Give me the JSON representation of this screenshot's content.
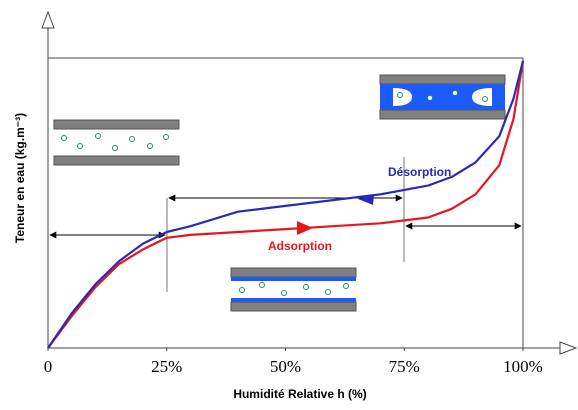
{
  "chart_data": {
    "type": "line",
    "x_label": "Humidité Relative h (%)",
    "y_label": "Teneur en eau (kg.m⁻³)",
    "x": [
      0,
      5,
      10,
      15,
      20,
      25,
      30,
      40,
      50,
      60,
      70,
      80,
      85,
      90,
      95,
      98,
      100
    ],
    "series": [
      {
        "name": "Adsorption",
        "color": "#e8141e",
        "values": [
          0,
          11,
          21,
          29,
          34,
          38,
          39,
          40,
          41,
          42,
          43,
          45,
          48,
          53,
          63,
          79,
          99
        ]
      },
      {
        "name": "Désorption",
        "color": "#2a2ab4",
        "values": [
          0,
          12,
          22,
          30,
          36,
          40,
          42,
          47,
          49,
          51,
          53,
          56,
          59,
          64,
          73,
          86,
          99
        ]
      }
    ],
    "xlim": [
      0,
      100
    ],
    "ylim": [
      0,
      100
    ],
    "xticks": [
      0,
      {
        "value": 25,
        "label": "25%"
      },
      {
        "value": 50,
        "label": "50%"
      },
      {
        "value": 75,
        "label": "75%"
      },
      {
        "value": 100,
        "label": "100%"
      }
    ]
  }
}
